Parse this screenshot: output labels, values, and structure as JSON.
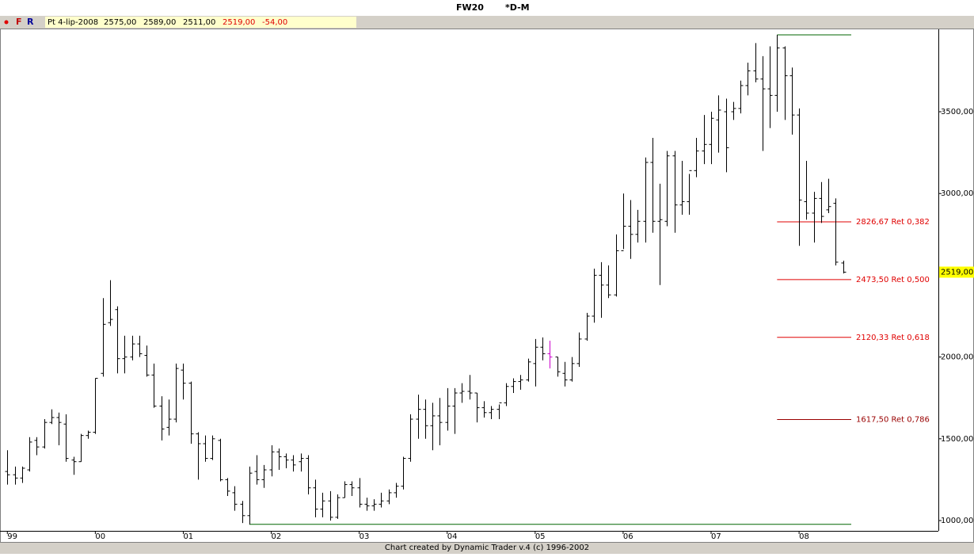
{
  "header": {
    "symbol": "FW20",
    "timeframe": "*D-M",
    "icons": [
      "F",
      "R"
    ],
    "date": "Pt 4-lip-2008",
    "open": "2575,00",
    "high": "2589,00",
    "low": "2511,00",
    "close": "2519,00",
    "change": "-54,00"
  },
  "footer": "Chart created by Dynamic Trader v.4  (c) 1996-2002",
  "chart_data": {
    "type": "ohlc",
    "color": "#000000",
    "highlight": {
      "index": 74,
      "color": "#cc00cc"
    },
    "bars": [
      [
        1300,
        1430,
        1220,
        1280
      ],
      [
        1280,
        1330,
        1220,
        1260
      ],
      [
        1260,
        1330,
        1230,
        1320
      ],
      [
        1310,
        1510,
        1300,
        1480
      ],
      [
        1490,
        1510,
        1400,
        1450
      ],
      [
        1450,
        1620,
        1440,
        1600
      ],
      [
        1600,
        1680,
        1590,
        1630
      ],
      [
        1630,
        1660,
        1460,
        1600
      ],
      [
        1590,
        1650,
        1360,
        1380
      ],
      [
        1370,
        1390,
        1280,
        1360
      ],
      [
        1360,
        1530,
        1360,
        1520
      ],
      [
        1520,
        1550,
        1500,
        1540
      ],
      [
        1540,
        1870,
        1530,
        1870
      ],
      [
        1900,
        2360,
        1880,
        2200
      ],
      [
        2210,
        2470,
        2190,
        2230
      ],
      [
        2290,
        2310,
        1900,
        1990
      ],
      [
        1990,
        2130,
        1900,
        2000
      ],
      [
        2000,
        2130,
        1980,
        2080
      ],
      [
        2080,
        2130,
        2000,
        2020
      ],
      [
        2010,
        2070,
        1880,
        1890
      ],
      [
        1890,
        1960,
        1690,
        1700
      ],
      [
        1700,
        1760,
        1490,
        1560
      ],
      [
        1570,
        1740,
        1520,
        1620
      ],
      [
        1620,
        1960,
        1600,
        1930
      ],
      [
        1920,
        1960,
        1740,
        1840
      ],
      [
        1840,
        1850,
        1470,
        1530
      ],
      [
        1530,
        1540,
        1250,
        1470
      ],
      [
        1470,
        1520,
        1360,
        1380
      ],
      [
        1380,
        1520,
        1370,
        1500
      ],
      [
        1490,
        1500,
        1240,
        1250
      ],
      [
        1250,
        1260,
        1150,
        1180
      ],
      [
        1170,
        1210,
        1060,
        1100
      ],
      [
        1100,
        1120,
        985,
        1030
      ],
      [
        1030,
        1330,
        977,
        1290
      ],
      [
        1300,
        1400,
        1220,
        1250
      ],
      [
        1250,
        1340,
        1200,
        1310
      ],
      [
        1310,
        1460,
        1270,
        1420
      ],
      [
        1420,
        1440,
        1310,
        1390
      ],
      [
        1390,
        1410,
        1320,
        1370
      ],
      [
        1370,
        1400,
        1300,
        1340
      ],
      [
        1360,
        1410,
        1300,
        1380
      ],
      [
        1380,
        1400,
        1160,
        1200
      ],
      [
        1200,
        1250,
        1020,
        1070
      ],
      [
        1070,
        1170,
        1020,
        1120
      ],
      [
        1120,
        1180,
        1000,
        1020
      ],
      [
        1020,
        1160,
        1010,
        1140
      ],
      [
        1140,
        1240,
        1140,
        1220
      ],
      [
        1220,
        1240,
        1150,
        1200
      ],
      [
        1200,
        1260,
        1080,
        1100
      ],
      [
        1100,
        1140,
        1060,
        1090
      ],
      [
        1090,
        1130,
        1060,
        1100
      ],
      [
        1100,
        1170,
        1080,
        1120
      ],
      [
        1120,
        1190,
        1100,
        1170
      ],
      [
        1170,
        1230,
        1140,
        1210
      ],
      [
        1210,
        1390,
        1190,
        1380
      ],
      [
        1380,
        1650,
        1360,
        1620
      ],
      [
        1620,
        1770,
        1500,
        1680
      ],
      [
        1680,
        1740,
        1500,
        1580
      ],
      [
        1580,
        1720,
        1430,
        1640
      ],
      [
        1640,
        1750,
        1460,
        1600
      ],
      [
        1600,
        1810,
        1550,
        1700
      ],
      [
        1700,
        1810,
        1530,
        1780
      ],
      [
        1780,
        1840,
        1720,
        1790
      ],
      [
        1790,
        1890,
        1740,
        1780
      ],
      [
        1780,
        1780,
        1600,
        1690
      ],
      [
        1690,
        1730,
        1630,
        1660
      ],
      [
        1660,
        1700,
        1620,
        1680
      ],
      [
        1680,
        1710,
        1620,
        1720
      ],
      [
        1720,
        1840,
        1700,
        1820
      ],
      [
        1820,
        1870,
        1780,
        1850
      ],
      [
        1850,
        1890,
        1800,
        1860
      ],
      [
        1860,
        1990,
        1850,
        1970
      ],
      [
        1960,
        2110,
        1820,
        2060
      ],
      [
        2060,
        2120,
        1980,
        2020
      ],
      [
        2020,
        2100,
        1930,
        2000
      ],
      [
        2000,
        2000,
        1880,
        1910
      ],
      [
        1900,
        1970,
        1820,
        1860
      ],
      [
        1860,
        2000,
        1850,
        1960
      ],
      [
        1960,
        2150,
        1940,
        2110
      ],
      [
        2110,
        2270,
        2100,
        2250
      ],
      [
        2250,
        2540,
        2210,
        2500
      ],
      [
        2500,
        2580,
        2240,
        2440
      ],
      [
        2440,
        2560,
        2360,
        2380
      ],
      [
        2380,
        2750,
        2370,
        2650
      ],
      [
        2650,
        3000,
        2660,
        2800
      ],
      [
        2800,
        2960,
        2600,
        2750
      ],
      [
        2750,
        2900,
        2700,
        2830
      ],
      [
        2830,
        3220,
        2700,
        3190
      ],
      [
        3190,
        3340,
        2760,
        2830
      ],
      [
        2830,
        3060,
        2440,
        2840
      ],
      [
        2830,
        3260,
        2800,
        3230
      ],
      [
        3230,
        3260,
        2760,
        2930
      ],
      [
        2930,
        3200,
        2870,
        2950
      ],
      [
        2950,
        3120,
        2870,
        3140
      ],
      [
        3140,
        3340,
        3100,
        3260
      ],
      [
        3260,
        3480,
        3180,
        3300
      ],
      [
        3300,
        3500,
        3180,
        3460
      ],
      [
        3450,
        3600,
        3250,
        3510
      ],
      [
        3500,
        3580,
        3130,
        3280
      ],
      [
        3500,
        3560,
        3450,
        3520
      ],
      [
        3520,
        3690,
        3490,
        3660
      ],
      [
        3660,
        3800,
        3600,
        3750
      ],
      [
        3750,
        3920,
        3680,
        3700
      ],
      [
        3700,
        3840,
        3260,
        3640
      ],
      [
        3640,
        3900,
        3400,
        3600
      ],
      [
        3600,
        3970,
        3500,
        3890
      ],
      [
        3890,
        3900,
        3450,
        3720
      ],
      [
        3720,
        3770,
        3360,
        3480
      ],
      [
        3480,
        3520,
        2680,
        2960
      ],
      [
        2950,
        3200,
        2840,
        2880
      ],
      [
        2880,
        3010,
        2700,
        2970
      ],
      [
        2970,
        3070,
        2820,
        2860
      ],
      [
        2900,
        3090,
        2880,
        2920
      ],
      [
        2940,
        2970,
        2560,
        2580
      ],
      [
        2575,
        2589,
        2511,
        2519
      ]
    ],
    "xlim": [
      -1,
      127
    ],
    "xticks": [
      {
        "value": 0,
        "label": "99"
      },
      {
        "value": 12,
        "label": "00"
      },
      {
        "value": 24,
        "label": "01"
      },
      {
        "value": 36,
        "label": "02"
      },
      {
        "value": 48,
        "label": "03"
      },
      {
        "value": 60,
        "label": "04"
      },
      {
        "value": 72,
        "label": "05"
      },
      {
        "value": 84,
        "label": "06"
      },
      {
        "value": 96,
        "label": "07"
      },
      {
        "value": 108,
        "label": "08"
      }
    ],
    "ylim": [
      937,
      4004
    ],
    "yticks": [
      {
        "value": 1000,
        "label": "1000,00"
      },
      {
        "value": 1500,
        "label": "1500,00"
      },
      {
        "value": 2000,
        "label": "2000,00"
      },
      {
        "value": 3000,
        "label": "3000,00"
      },
      {
        "value": 3500,
        "label": "3500,00"
      }
    ],
    "swing_high": {
      "index": 105,
      "value": 3970,
      "color": "#006600"
    },
    "swing_low": {
      "index": 33,
      "value": 977,
      "color": "#006600"
    },
    "retracements": [
      {
        "value": 2826.67,
        "label": "2826,67 Ret 0,382",
        "color": "#e00000"
      },
      {
        "value": 2473.5,
        "label": "2473,50 Ret 0,500",
        "color": "#e00000"
      },
      {
        "value": 2120.33,
        "label": "2120,33 Ret 0,618",
        "color": "#e00000"
      },
      {
        "value": 1617.5,
        "label": "1617,50 Ret 0,786",
        "color": "#990000"
      }
    ],
    "last_price": {
      "value": 2519,
      "label": "2519,00"
    }
  }
}
